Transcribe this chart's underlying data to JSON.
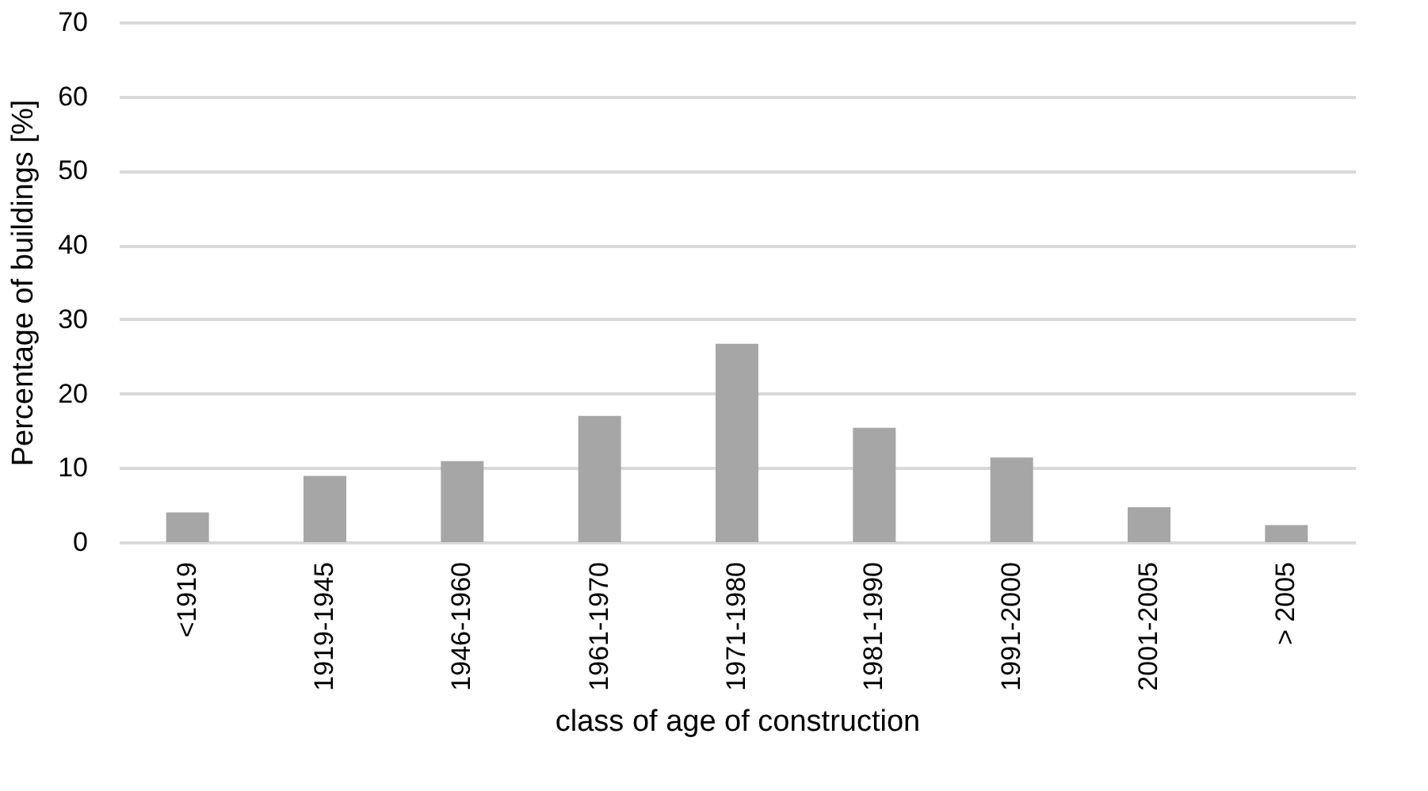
{
  "chart_data": {
    "type": "bar",
    "xlabel": "class of age of construction",
    "ylabel": "Percentage of buildings [%]",
    "categories": [
      "<1919",
      "1919-1945",
      "1946-1960",
      "1961-1970",
      "1971-1980",
      "1981-1990",
      "1991-2000",
      "2001-2005",
      "> 2005"
    ],
    "values": [
      4.0,
      8.9,
      10.9,
      17.0,
      26.7,
      15.4,
      11.4,
      4.7,
      2.3
    ],
    "color": "#a6a6a6",
    "ylim": [
      0,
      70
    ],
    "yticks": [
      0,
      10,
      20,
      30,
      40,
      50,
      60,
      70
    ],
    "grid": "y"
  }
}
